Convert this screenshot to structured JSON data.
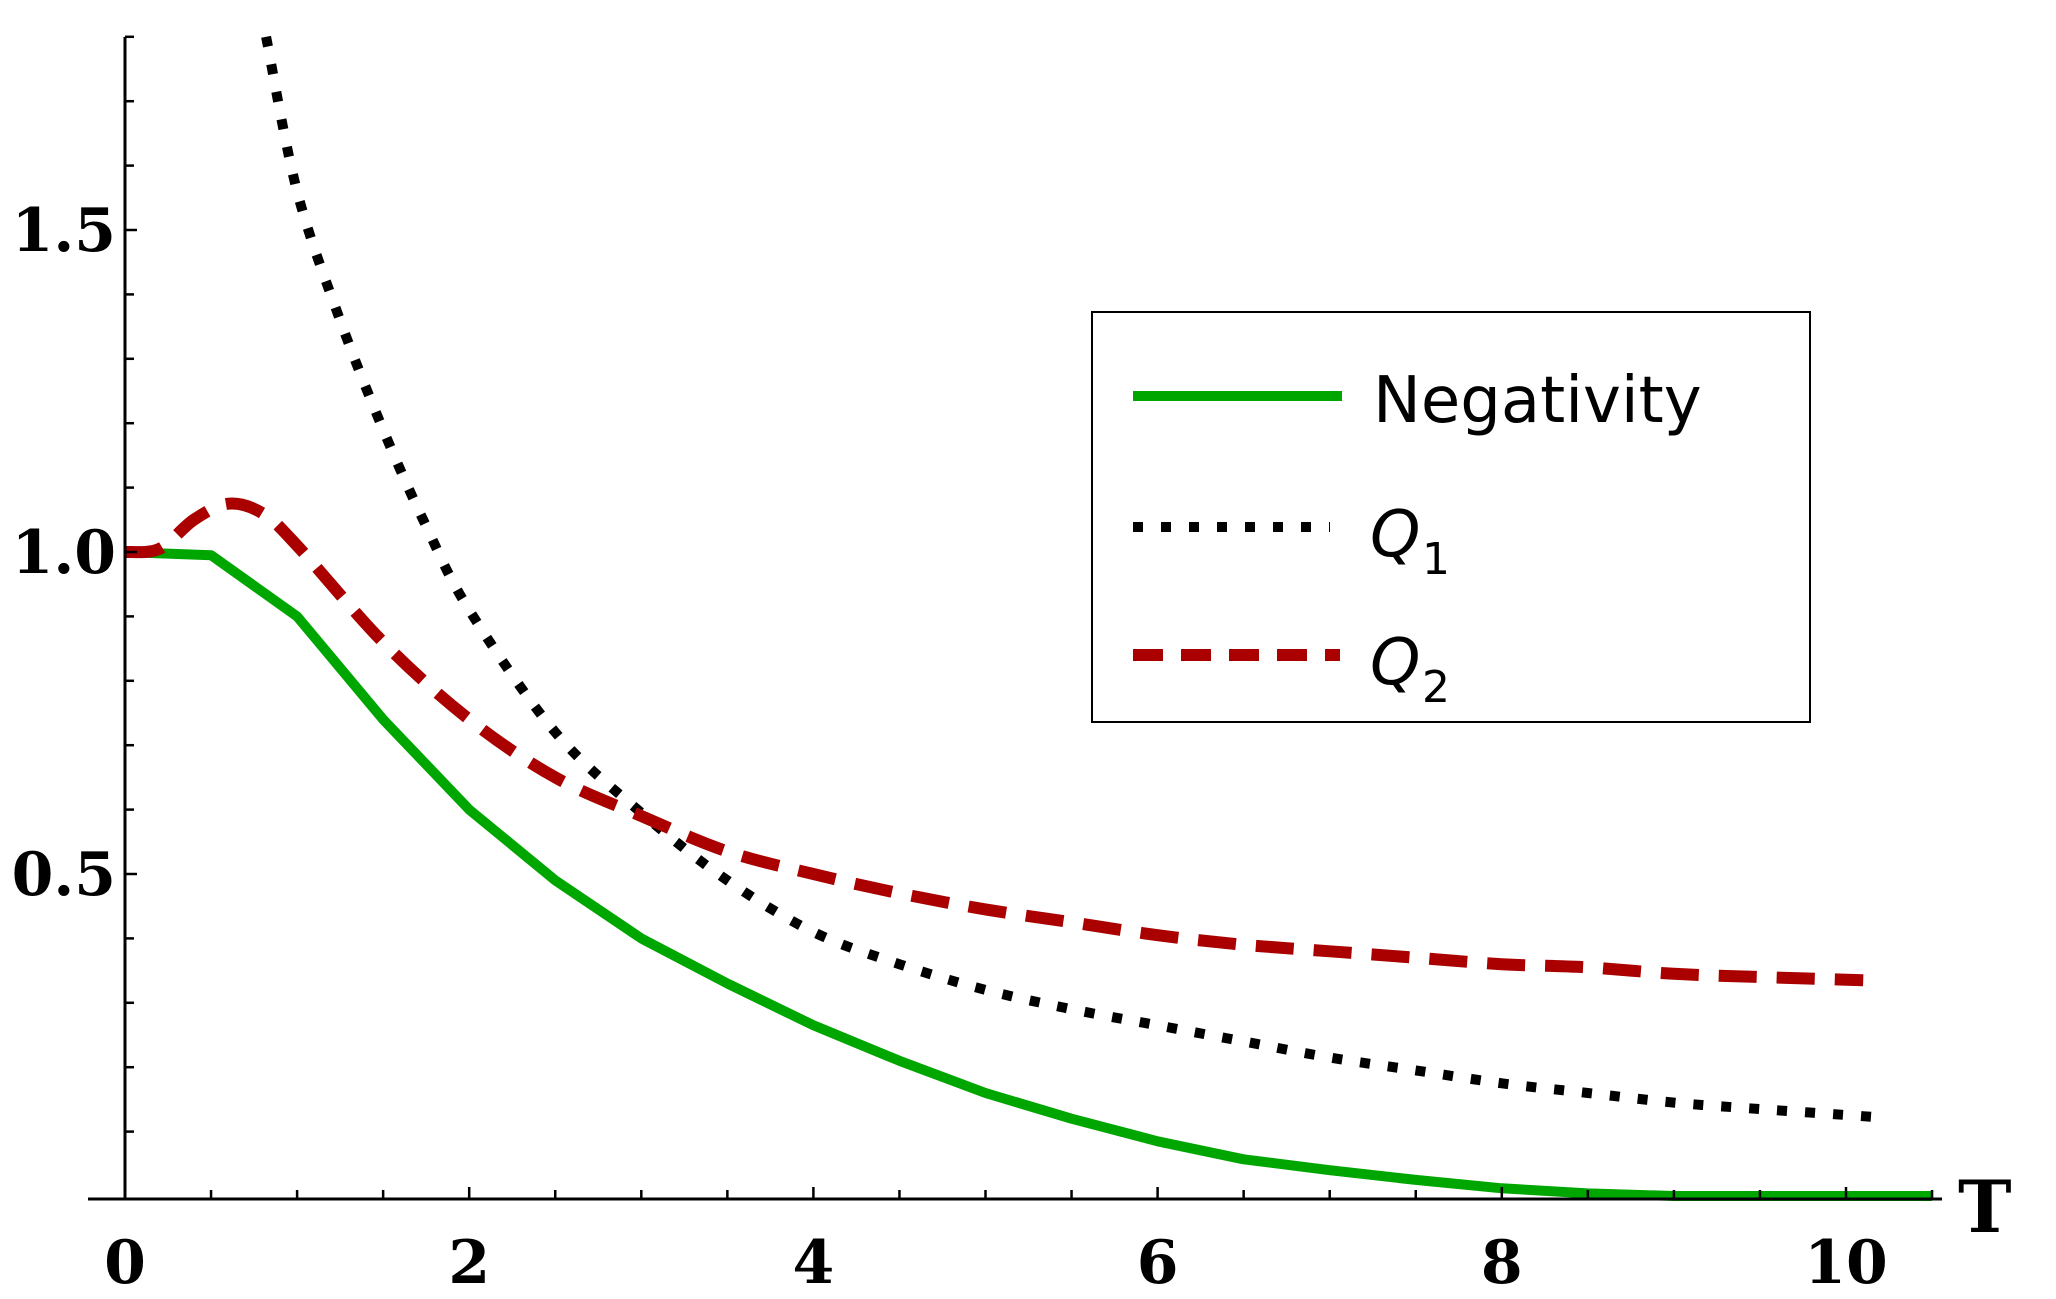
{
  "chart_data": {
    "type": "line",
    "title": "",
    "xlabel": "T",
    "ylabel": "",
    "xlim": [
      -0.45,
      10.75
    ],
    "ylim": [
      0,
      1.8
    ],
    "x_ticks": [
      0,
      2,
      4,
      6,
      8,
      10
    ],
    "x_tick_labels": [
      "0",
      "2",
      "4",
      "6",
      "8",
      "10"
    ],
    "x_minor_step": 0.5,
    "y_ticks": [
      0.5,
      1.0,
      1.5
    ],
    "y_tick_labels": [
      "0.5",
      "1.0",
      "1.5"
    ],
    "y_minor_step": 0.1,
    "grid": false,
    "legend_position": "upper right",
    "series": [
      {
        "name": "Negativity",
        "style": "solid",
        "color": "#00a600",
        "x": [
          0,
          0.5,
          1.0,
          1.5,
          2.0,
          2.5,
          3.0,
          3.5,
          4.0,
          4.5,
          5.0,
          5.5,
          6.0,
          6.5,
          7.0,
          7.5,
          8.0,
          8.5,
          9.0,
          9.5,
          10.0,
          10.5
        ],
        "values": [
          1.0,
          0.995,
          0.9,
          0.74,
          0.6,
          0.49,
          0.4,
          0.33,
          0.265,
          0.21,
          0.16,
          0.12,
          0.085,
          0.057,
          0.04,
          0.025,
          0.012,
          0.004,
          0.0,
          0.0,
          0.0,
          0.0
        ]
      },
      {
        "name": "Q1",
        "style": "dotted",
        "color": "#000000",
        "x": [
          0.82,
          1.0,
          1.25,
          1.5,
          1.75,
          2.0,
          2.5,
          3.0,
          3.5,
          4.0,
          4.5,
          5.0,
          5.5,
          6.0,
          6.5,
          7.0,
          7.5,
          8.0,
          8.5,
          9.0,
          9.5,
          10.15
        ],
        "values": [
          1.8,
          1.56,
          1.36,
          1.19,
          1.04,
          0.91,
          0.72,
          0.595,
          0.49,
          0.41,
          0.36,
          0.32,
          0.29,
          0.265,
          0.24,
          0.215,
          0.195,
          0.175,
          0.16,
          0.145,
          0.135,
          0.123
        ]
      },
      {
        "name": "Q2",
        "style": "dashed",
        "color": "#aa0000",
        "x": [
          0,
          0.2,
          0.4,
          0.6,
          0.8,
          1.0,
          1.5,
          2.0,
          2.5,
          3.0,
          3.5,
          4.0,
          4.5,
          5.0,
          5.5,
          6.0,
          6.5,
          7.0,
          7.5,
          8.0,
          8.5,
          9.0,
          9.5,
          10.1
        ],
        "values": [
          1.0,
          1.005,
          1.05,
          1.075,
          1.06,
          1.01,
          0.86,
          0.74,
          0.65,
          0.59,
          0.535,
          0.5,
          0.47,
          0.445,
          0.425,
          0.405,
          0.39,
          0.38,
          0.37,
          0.36,
          0.355,
          0.345,
          0.34,
          0.335
        ]
      }
    ]
  },
  "legend": {
    "items": [
      {
        "label": "Negativity",
        "sub": ""
      },
      {
        "label": "Q",
        "sub": "1"
      },
      {
        "label": "Q",
        "sub": "2"
      }
    ]
  },
  "axes": {
    "x_title": "T"
  }
}
